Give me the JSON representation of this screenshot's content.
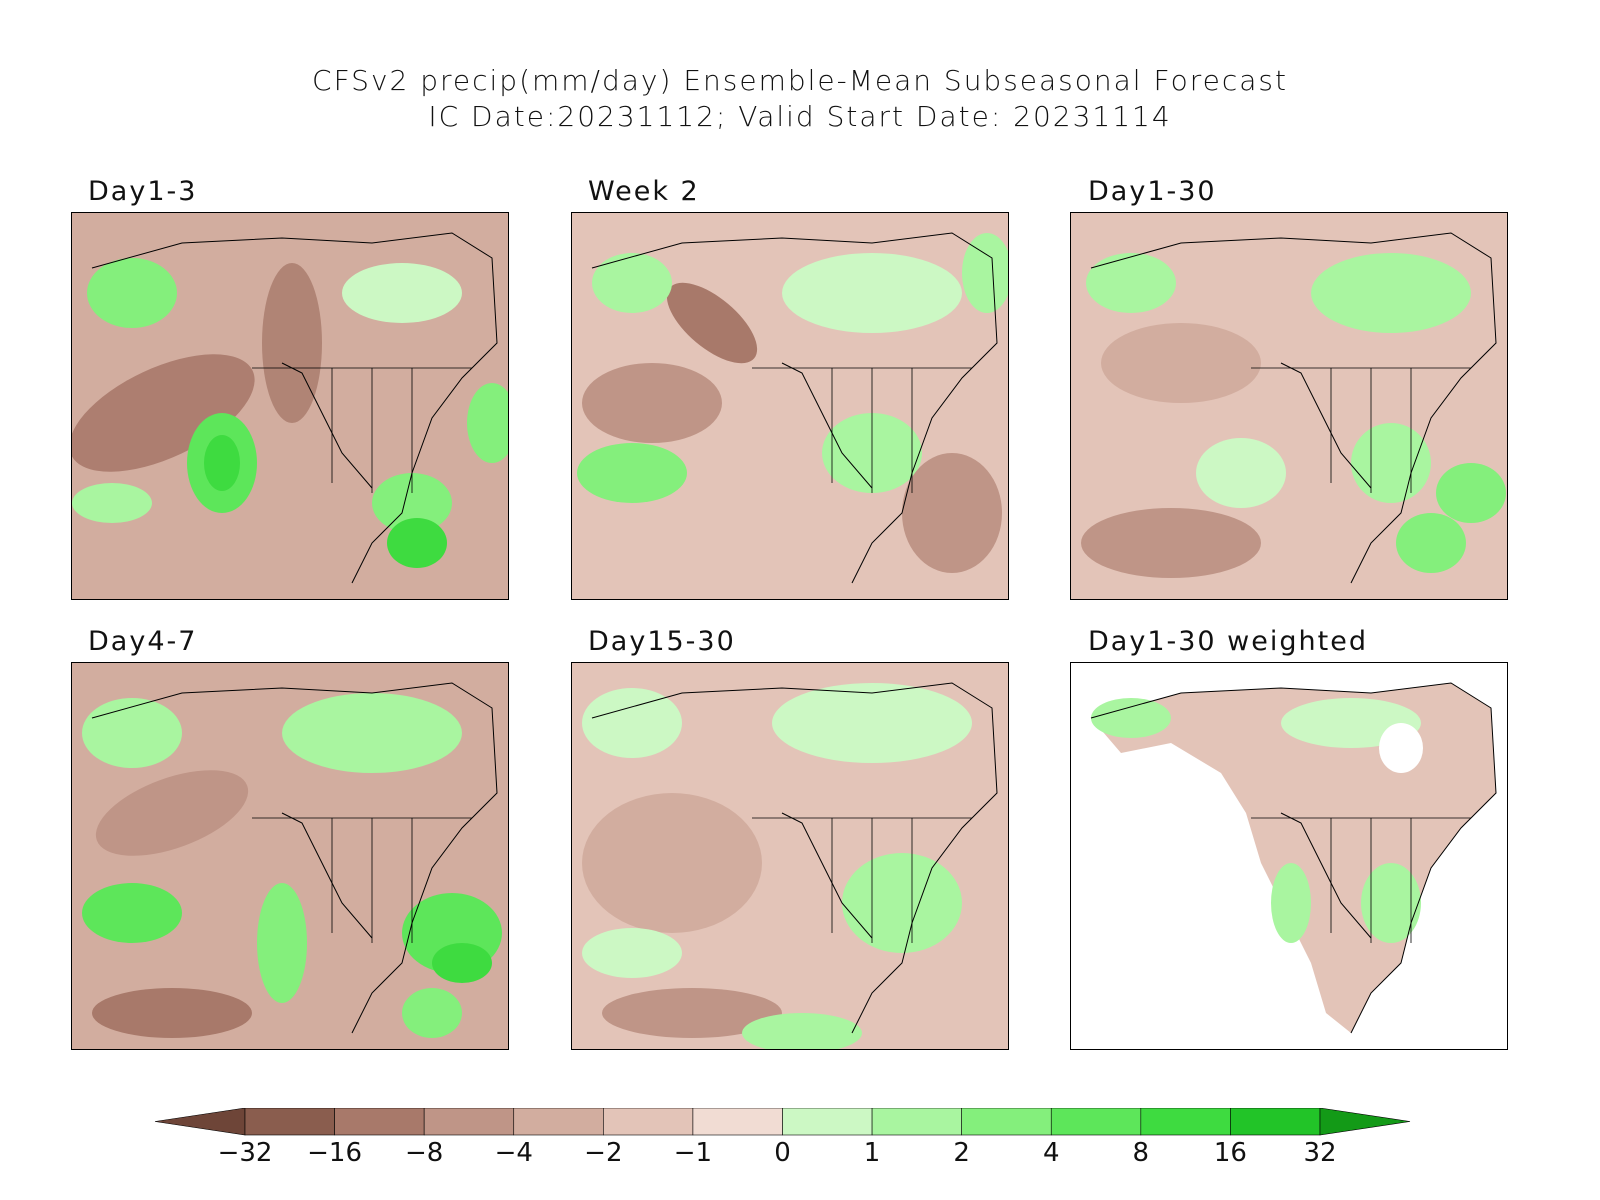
{
  "title": {
    "line1": "CFSv2 precip(mm/day) Ensemble-Mean Subseasonal Forecast",
    "line2": "IC Date:20231112; Valid Start Date: 20231114"
  },
  "panels": [
    {
      "id": "day1-3",
      "label": "Day1-3"
    },
    {
      "id": "week2",
      "label": "Week 2"
    },
    {
      "id": "day1-30",
      "label": "Day1-30"
    },
    {
      "id": "day4-7",
      "label": "Day4-7"
    },
    {
      "id": "day15-30",
      "label": "Day15-30"
    },
    {
      "id": "day1-30-weighted",
      "label": "Day1-30 weighted"
    }
  ],
  "colorbar": {
    "ticks": [
      "-32",
      "-16",
      "-8",
      "-4",
      "-2",
      "-1",
      "0",
      "1",
      "2",
      "4",
      "8",
      "16",
      "32"
    ],
    "colors": [
      "#6e4538",
      "#8a5d4e",
      "#a8796a",
      "#bf9587",
      "#d2ad9f",
      "#e3c4b8",
      "#f1dcd3",
      "#ccf8c4",
      "#a9f5a0",
      "#84ef7c",
      "#5de65a",
      "#3edb40",
      "#22c428",
      "#139a17"
    ]
  }
}
